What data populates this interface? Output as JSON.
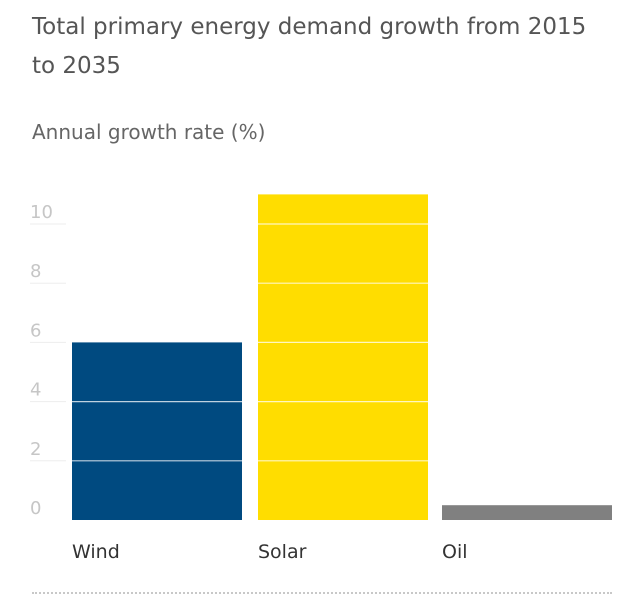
{
  "chart_data": {
    "type": "bar",
    "title": "Total primary energy demand growth from 2015 to 2035",
    "subtitle": "Annual growth rate (%)",
    "categories": [
      "Wind",
      "Solar",
      "Oil"
    ],
    "values": [
      6.0,
      11.0,
      0.5
    ],
    "colors": [
      "#004a80",
      "#ffdd00",
      "#808080"
    ],
    "gridline_color": "#ffffff",
    "ylim": [
      0,
      11
    ],
    "yticks": [
      0,
      2,
      4,
      6,
      8,
      10
    ],
    "ytick_labels": [
      "0",
      "2",
      "4",
      "6",
      "8",
      "10"
    ],
    "xlabel": "",
    "ylabel": ""
  }
}
